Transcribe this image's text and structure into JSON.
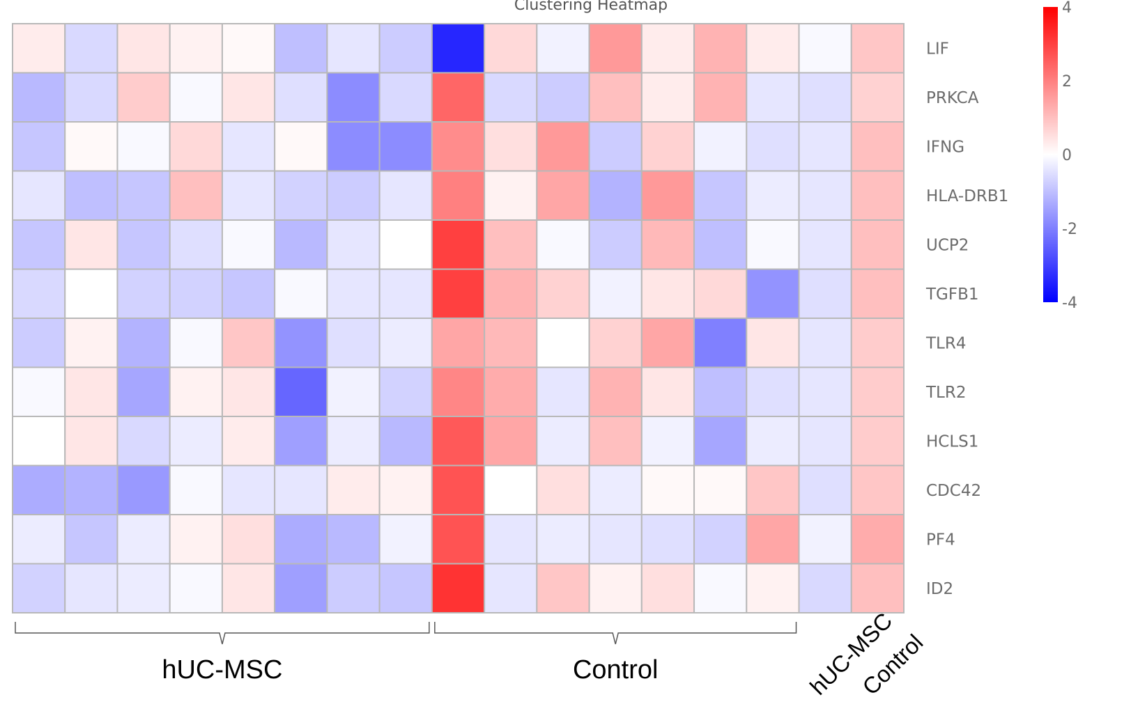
{
  "chart_data": {
    "type": "heatmap",
    "title": "Clustering Heatmap",
    "rows": [
      "LIF",
      "PRKCA",
      "IFNG",
      "HLA-DRB1",
      "UCP2",
      "TGFB1",
      "TLR4",
      "TLR2",
      "HCLS1",
      "CDC42",
      "PF4",
      "ID2"
    ],
    "n_columns": 17,
    "values": [
      [
        0.3,
        -0.6,
        0.4,
        0.2,
        0.1,
        -1.0,
        -0.4,
        -0.8,
        -3.4,
        0.6,
        -0.2,
        1.6,
        0.3,
        1.2,
        0.3,
        -0.1,
        0.9
      ],
      [
        -1.1,
        -0.6,
        0.8,
        -0.1,
        0.4,
        -0.5,
        -1.8,
        -0.6,
        2.4,
        -0.6,
        -0.8,
        1.0,
        0.3,
        1.2,
        -0.4,
        -0.5,
        0.7
      ],
      [
        -0.9,
        0.1,
        -0.1,
        0.6,
        -0.4,
        0.1,
        -1.8,
        -1.8,
        1.8,
        0.5,
        1.6,
        -0.8,
        0.7,
        -0.2,
        -0.5,
        -0.4,
        1.0
      ],
      [
        -0.4,
        -1.0,
        -0.9,
        1.0,
        -0.4,
        -0.7,
        -0.8,
        -0.4,
        2.0,
        0.2,
        1.4,
        -1.2,
        1.6,
        -0.9,
        -0.3,
        -0.4,
        1.0
      ],
      [
        -0.9,
        0.4,
        -0.9,
        -0.5,
        -0.1,
        -1.1,
        -0.4,
        0.0,
        3.0,
        1.0,
        -0.1,
        -0.8,
        1.1,
        -1.0,
        -0.1,
        -0.4,
        1.0
      ],
      [
        -0.6,
        0.0,
        -0.7,
        -0.7,
        -0.9,
        -0.1,
        -0.4,
        -0.4,
        3.0,
        1.2,
        0.7,
        -0.2,
        0.4,
        0.6,
        -1.7,
        -0.5,
        1.0
      ],
      [
        -0.8,
        0.2,
        -1.2,
        -0.1,
        0.9,
        -1.7,
        -0.5,
        -0.3,
        1.4,
        1.1,
        0.0,
        0.7,
        1.4,
        -2.0,
        0.4,
        -0.4,
        0.8
      ],
      [
        -0.1,
        0.4,
        -1.4,
        0.2,
        0.4,
        -2.4,
        -0.2,
        -0.7,
        1.9,
        1.3,
        -0.4,
        1.2,
        0.4,
        -1.0,
        -0.5,
        -0.4,
        0.8
      ],
      [
        0.0,
        0.4,
        -0.6,
        -0.3,
        0.3,
        -1.5,
        -0.3,
        -1.1,
        2.6,
        1.4,
        -0.3,
        1.0,
        -0.2,
        -1.4,
        -0.3,
        -0.4,
        0.8
      ],
      [
        -1.3,
        -1.2,
        -1.6,
        -0.1,
        -0.4,
        -0.4,
        0.3,
        0.2,
        2.7,
        0.0,
        0.5,
        -0.3,
        0.1,
        0.1,
        0.9,
        -0.5,
        0.9
      ],
      [
        -0.3,
        -0.9,
        -0.3,
        0.2,
        0.5,
        -1.3,
        -1.1,
        -0.2,
        2.7,
        -0.4,
        -0.3,
        -0.4,
        -0.5,
        -0.7,
        1.4,
        -0.2,
        1.3
      ],
      [
        -0.7,
        -0.4,
        -0.3,
        -0.1,
        0.4,
        -1.5,
        -0.8,
        -0.9,
        3.2,
        -0.4,
        0.9,
        0.2,
        0.5,
        -0.1,
        0.2,
        -0.6,
        1.0
      ]
    ],
    "colorbar": {
      "min": -4,
      "max": 4,
      "ticks": [
        "4",
        "2",
        "0",
        "-2",
        "-4"
      ],
      "colors": {
        "low": "#0000ff",
        "mid": "#ffffff",
        "high": "#ff0000"
      }
    },
    "groups": [
      {
        "label": "hUC-MSC",
        "start_col": 0,
        "end_col": 7
      },
      {
        "label": "Control",
        "start_col": 8,
        "end_col": 14
      }
    ],
    "legend_columns": [
      {
        "label": "hUC-MSC",
        "col": 15
      },
      {
        "label": "Control",
        "col": 16
      }
    ],
    "grid_color": "#b8b8b8"
  }
}
